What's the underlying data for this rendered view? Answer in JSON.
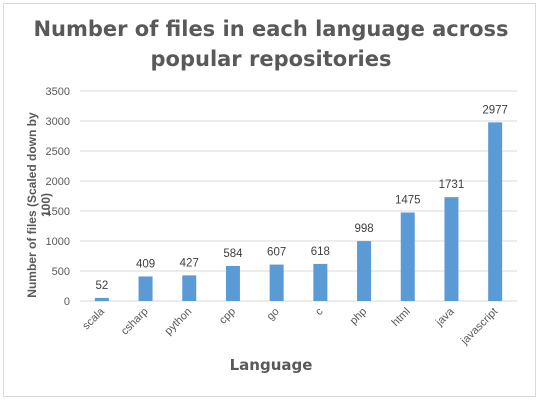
{
  "chart_data": {
    "type": "bar",
    "title": "Number of files in each language across popular repositories",
    "title_lines": [
      "Number of files in each language across",
      "popular repositories"
    ],
    "xlabel": "Language",
    "ylabel": "Number of files (Scaled down by 100)",
    "categories": [
      "scala",
      "csharp",
      "python",
      "cpp",
      "go",
      "c",
      "php",
      "html",
      "java",
      "javascript"
    ],
    "values": [
      52,
      409,
      427,
      584,
      607,
      618,
      998,
      1475,
      1731,
      2977
    ],
    "ylim": [
      0,
      3500
    ],
    "yticks": [
      0,
      500,
      1000,
      1500,
      2000,
      2500,
      3000,
      3500
    ],
    "grid": true,
    "bar_color": "#5b9bd5",
    "grid_color": "#d9d9d9",
    "legend": "none"
  }
}
